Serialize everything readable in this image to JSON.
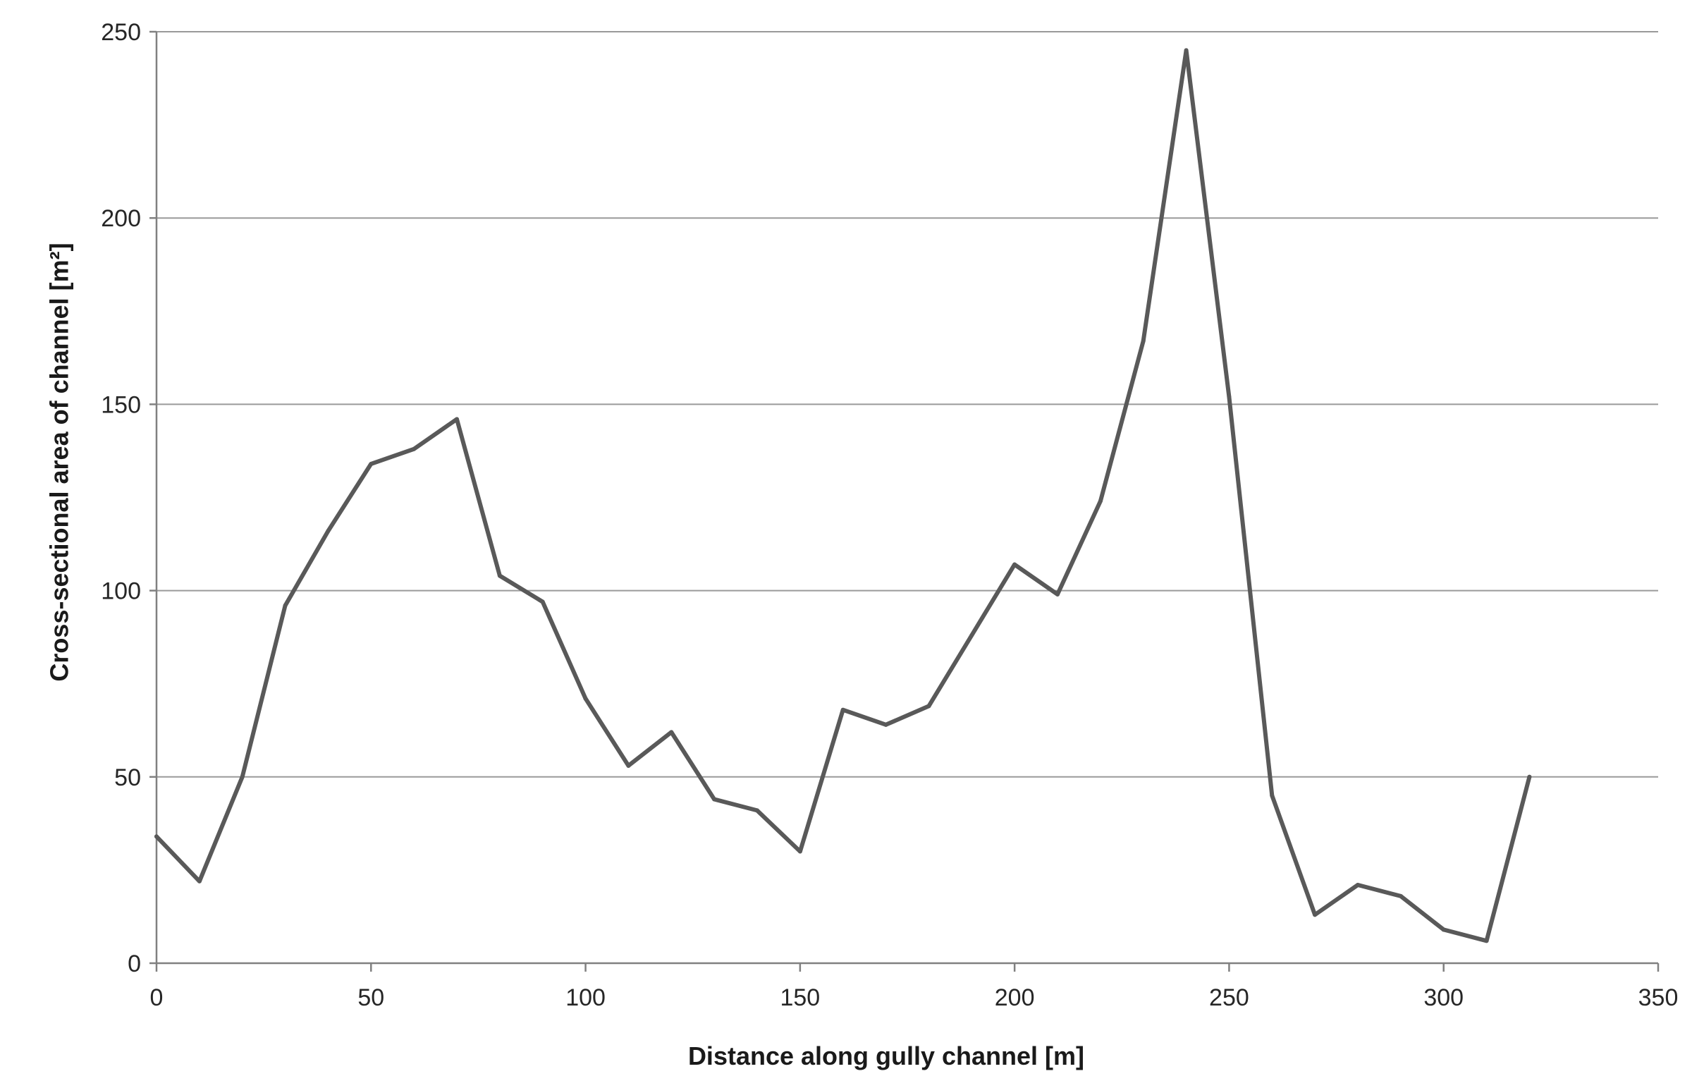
{
  "chart_data": {
    "type": "line",
    "title": "",
    "xlabel": "Distance along gully channel [m]",
    "ylabel": "Cross-sectional area of channel [m²]",
    "xlim": [
      0,
      350
    ],
    "ylim": [
      0,
      250
    ],
    "xticks": [
      0,
      50,
      100,
      150,
      200,
      250,
      300,
      350
    ],
    "yticks": [
      0,
      50,
      100,
      150,
      200,
      250
    ],
    "grid": "horizontal",
    "legend": "none",
    "series": [
      {
        "color": "#595959",
        "x": [
          0,
          10,
          20,
          30,
          40,
          50,
          60,
          70,
          80,
          90,
          100,
          110,
          120,
          130,
          140,
          150,
          160,
          170,
          180,
          190,
          200,
          210,
          220,
          230,
          240,
          250,
          260,
          270,
          280,
          290,
          300,
          310,
          320
        ],
        "y": [
          34,
          22,
          50,
          96,
          116,
          134,
          138,
          146,
          104,
          97,
          71,
          53,
          62,
          44,
          41,
          30,
          68,
          64,
          69,
          88,
          107,
          99,
          124,
          167,
          245,
          152,
          45,
          13,
          21,
          18,
          9,
          6,
          50
        ]
      }
    ]
  }
}
